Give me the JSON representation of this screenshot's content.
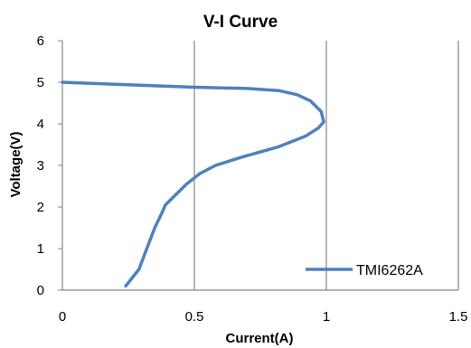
{
  "chart_data": {
    "type": "scatter",
    "title": "V-I Curve",
    "xlabel": "Current(A)",
    "ylabel": "Voltage(V)",
    "xlim": [
      0,
      1.5
    ],
    "ylim": [
      0,
      6
    ],
    "x_ticks": [
      "0",
      "0.5",
      "1",
      "1.5"
    ],
    "y_ticks": [
      "0",
      "1",
      "2",
      "3",
      "4",
      "5",
      "6"
    ],
    "grid": "vertical",
    "legend_position": "bottom-right",
    "series": [
      {
        "name": "TMI6262A",
        "color": "#4f81bd",
        "line": true,
        "markers": false,
        "x": [
          0.0,
          0.2,
          0.5,
          0.7,
          0.82,
          0.89,
          0.94,
          0.98,
          0.99,
          0.97,
          0.92,
          0.82,
          0.68,
          0.58,
          0.52,
          0.47,
          0.43,
          0.39,
          0.38,
          0.35,
          0.32,
          0.29,
          0.24
        ],
        "y": [
          5.0,
          4.95,
          4.88,
          4.85,
          4.8,
          4.7,
          4.55,
          4.3,
          4.05,
          3.9,
          3.7,
          3.45,
          3.2,
          3.0,
          2.8,
          2.55,
          2.3,
          2.05,
          1.9,
          1.5,
          1.0,
          0.5,
          0.1
        ]
      }
    ]
  }
}
